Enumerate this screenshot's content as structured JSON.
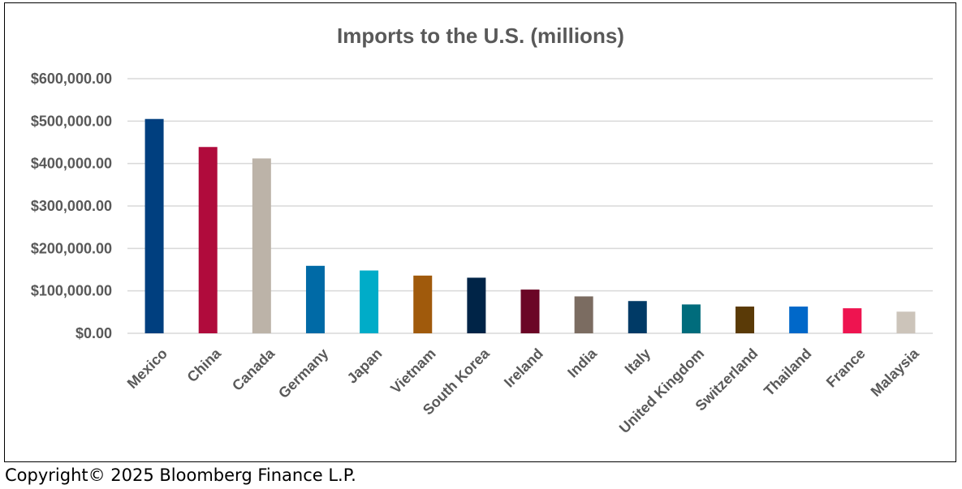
{
  "chart_data": {
    "type": "bar",
    "title": "Imports to the U.S. (millions)",
    "xlabel": "",
    "ylabel": "",
    "categories": [
      "Mexico",
      "China",
      "Canada",
      "Germany",
      "Japan",
      "Vietnam",
      "South Korea",
      "Ireland",
      "India",
      "Italy",
      "United Kingdom",
      "Switzerland",
      "Thailand",
      "France",
      "Malaysia"
    ],
    "values": [
      505000,
      439000,
      412000,
      159000,
      148000,
      136000,
      131000,
      103000,
      87000,
      76000,
      68000,
      63000,
      63000,
      59000,
      51000
    ],
    "colors": [
      "#003f7f",
      "#b00b3c",
      "#bcb3a8",
      "#006aa6",
      "#00acc8",
      "#a05a0c",
      "#002447",
      "#6b0626",
      "#7b6c61",
      "#003a66",
      "#006c7c",
      "#5a3a07",
      "#0068c9",
      "#ee1450",
      "#ccc4ba"
    ],
    "ylim": [
      0,
      600000
    ],
    "yticks": [
      0,
      100000,
      200000,
      300000,
      400000,
      500000,
      600000
    ],
    "ytick_labels": [
      "$0.00",
      "$100,000.00",
      "$200,000.00",
      "$300,000.00",
      "$400,000.00",
      "$500,000.00",
      "$600,000.00"
    ],
    "grid": true,
    "legend": "none"
  },
  "footer": {
    "copyright": "Copyright© 2025 Bloomberg Finance L.P."
  }
}
